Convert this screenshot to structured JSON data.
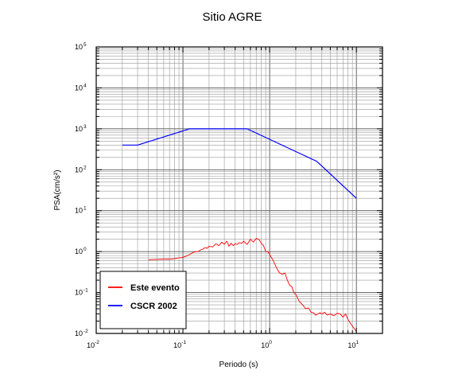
{
  "chart_data": {
    "type": "line",
    "title": "Sitio AGRE",
    "xlabel": "Periodo (s)",
    "ylabel": "PSA(cm/s²)",
    "xscale": "log",
    "yscale": "log",
    "xlim": [
      0.01,
      20
    ],
    "ylim": [
      0.01,
      100000
    ],
    "grid": true,
    "legend_position": "bottom-left",
    "x_tick_labels": [
      {
        "base": "10",
        "exp": "-2"
      },
      {
        "base": "10",
        "exp": "-1"
      },
      {
        "base": "10",
        "exp": "0"
      },
      {
        "base": "10",
        "exp": "1"
      }
    ],
    "y_tick_labels": [
      {
        "base": "10",
        "exp": "-2"
      },
      {
        "base": "10",
        "exp": "-1"
      },
      {
        "base": "10",
        "exp": "0"
      },
      {
        "base": "10",
        "exp": "1"
      },
      {
        "base": "10",
        "exp": "2"
      },
      {
        "base": "10",
        "exp": "3"
      },
      {
        "base": "10",
        "exp": "4"
      },
      {
        "base": "10",
        "exp": "5"
      }
    ],
    "series": [
      {
        "name": "Este evento",
        "color": "#ff0000",
        "x": [
          0.04,
          0.05,
          0.06,
          0.07,
          0.08,
          0.09,
          0.1,
          0.11,
          0.12,
          0.13,
          0.14,
          0.15,
          0.16,
          0.17,
          0.18,
          0.19,
          0.2,
          0.22,
          0.24,
          0.26,
          0.28,
          0.3,
          0.32,
          0.34,
          0.36,
          0.38,
          0.4,
          0.42,
          0.45,
          0.48,
          0.5,
          0.55,
          0.6,
          0.65,
          0.7,
          0.75,
          0.8,
          0.85,
          0.9,
          0.95,
          1.0,
          1.1,
          1.2,
          1.3,
          1.4,
          1.5,
          1.6,
          1.7,
          1.8,
          1.9,
          2.0,
          2.2,
          2.4,
          2.6,
          2.8,
          3.0,
          3.2,
          3.4,
          3.6,
          3.8,
          4.0,
          4.3,
          4.6,
          5.0,
          5.5,
          6.0,
          6.5,
          7.0,
          7.5,
          8.0,
          8.5,
          9.0,
          9.5,
          10.0
        ],
        "values": [
          0.63,
          0.64,
          0.65,
          0.65,
          0.67,
          0.7,
          0.72,
          0.78,
          0.85,
          0.95,
          1.0,
          1.0,
          1.1,
          1.15,
          1.25,
          1.2,
          1.35,
          1.3,
          1.55,
          1.4,
          1.7,
          1.5,
          1.8,
          1.35,
          1.6,
          1.4,
          1.55,
          1.5,
          1.65,
          1.6,
          1.8,
          1.5,
          2.0,
          1.7,
          2.1,
          2.0,
          1.6,
          1.4,
          1.0,
          1.0,
          0.85,
          0.6,
          0.4,
          0.3,
          0.28,
          0.3,
          0.2,
          0.15,
          0.14,
          0.1,
          0.09,
          0.06,
          0.05,
          0.04,
          0.042,
          0.033,
          0.032,
          0.028,
          0.03,
          0.032,
          0.03,
          0.033,
          0.028,
          0.03,
          0.027,
          0.031,
          0.03,
          0.025,
          0.03,
          0.022,
          0.018,
          0.015,
          0.013,
          0.011
        ]
      },
      {
        "name": "CSCR 2002",
        "color": "#0000ff",
        "x": [
          0.02,
          0.03,
          0.12,
          0.55,
          3.5,
          10.0
        ],
        "values": [
          400,
          400,
          1000,
          1000,
          160,
          20
        ]
      }
    ]
  }
}
